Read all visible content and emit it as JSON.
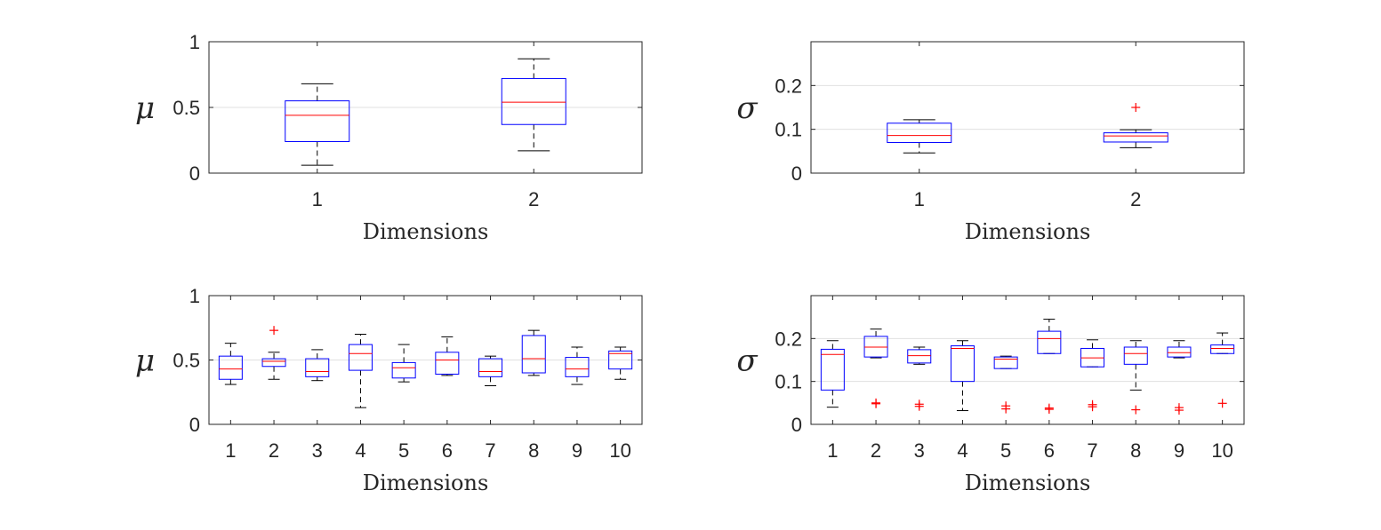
{
  "chart_data": [
    {
      "type": "box",
      "ylabel": "μ",
      "xlabel": "Dimensions",
      "ylim": [
        0,
        1
      ],
      "yticks": [
        0,
        0.5,
        1
      ],
      "ytick_labels": [
        "0",
        "0.5",
        "1"
      ],
      "grid": true,
      "categories": [
        "1",
        "2"
      ],
      "boxes": [
        {
          "whisker_low": 0.06,
          "q1": 0.24,
          "median": 0.44,
          "q3": 0.55,
          "whisker_high": 0.68,
          "outliers": []
        },
        {
          "whisker_low": 0.17,
          "q1": 0.37,
          "median": 0.54,
          "q3": 0.72,
          "whisker_high": 0.87,
          "outliers": []
        }
      ]
    },
    {
      "type": "box",
      "ylabel": "σ",
      "xlabel": "Dimensions",
      "ylim": [
        0,
        0.3
      ],
      "yticks": [
        0,
        0.1,
        0.2
      ],
      "ytick_labels": [
        "0",
        "0.1",
        "0.2"
      ],
      "grid": true,
      "categories": [
        "1",
        "2"
      ],
      "boxes": [
        {
          "whisker_low": 0.046,
          "q1": 0.07,
          "median": 0.086,
          "q3": 0.114,
          "whisker_high": 0.122,
          "outliers": []
        },
        {
          "whisker_low": 0.058,
          "q1": 0.071,
          "median": 0.085,
          "q3": 0.092,
          "whisker_high": 0.099,
          "outliers": [
            0.15
          ]
        }
      ]
    },
    {
      "type": "box",
      "ylabel": "μ",
      "xlabel": "Dimensions",
      "ylim": [
        0,
        1
      ],
      "yticks": [
        0,
        0.5,
        1
      ],
      "ytick_labels": [
        "0",
        "0.5",
        "1"
      ],
      "grid": true,
      "categories": [
        "1",
        "2",
        "3",
        "4",
        "5",
        "6",
        "7",
        "8",
        "9",
        "10"
      ],
      "boxes": [
        {
          "whisker_low": 0.31,
          "q1": 0.35,
          "median": 0.43,
          "q3": 0.53,
          "whisker_high": 0.63,
          "outliers": []
        },
        {
          "whisker_low": 0.35,
          "q1": 0.45,
          "median": 0.49,
          "q3": 0.51,
          "whisker_high": 0.56,
          "outliers": [
            0.73
          ]
        },
        {
          "whisker_low": 0.34,
          "q1": 0.37,
          "median": 0.41,
          "q3": 0.51,
          "whisker_high": 0.58,
          "outliers": []
        },
        {
          "whisker_low": 0.13,
          "q1": 0.42,
          "median": 0.55,
          "q3": 0.62,
          "whisker_high": 0.7,
          "outliers": []
        },
        {
          "whisker_low": 0.33,
          "q1": 0.36,
          "median": 0.44,
          "q3": 0.48,
          "whisker_high": 0.62,
          "outliers": []
        },
        {
          "whisker_low": 0.38,
          "q1": 0.39,
          "median": 0.5,
          "q3": 0.56,
          "whisker_high": 0.68,
          "outliers": []
        },
        {
          "whisker_low": 0.3,
          "q1": 0.37,
          "median": 0.41,
          "q3": 0.51,
          "whisker_high": 0.53,
          "outliers": []
        },
        {
          "whisker_low": 0.38,
          "q1": 0.4,
          "median": 0.51,
          "q3": 0.69,
          "whisker_high": 0.73,
          "outliers": []
        },
        {
          "whisker_low": 0.31,
          "q1": 0.37,
          "median": 0.43,
          "q3": 0.52,
          "whisker_high": 0.6,
          "outliers": []
        },
        {
          "whisker_low": 0.35,
          "q1": 0.43,
          "median": 0.55,
          "q3": 0.57,
          "whisker_high": 0.6,
          "outliers": []
        }
      ]
    },
    {
      "type": "box",
      "ylabel": "σ",
      "xlabel": "Dimensions",
      "ylim": [
        0,
        0.3
      ],
      "yticks": [
        0,
        0.1,
        0.2
      ],
      "ytick_labels": [
        "0",
        "0.1",
        "0.2"
      ],
      "grid": true,
      "categories": [
        "1",
        "2",
        "3",
        "4",
        "5",
        "6",
        "7",
        "8",
        "9",
        "10"
      ],
      "boxes": [
        {
          "whisker_low": 0.04,
          "q1": 0.08,
          "median": 0.163,
          "q3": 0.175,
          "whisker_high": 0.195,
          "outliers": []
        },
        {
          "whisker_low": 0.155,
          "q1": 0.157,
          "median": 0.18,
          "q3": 0.205,
          "whisker_high": 0.222,
          "outliers": [
            0.05,
            0.048
          ]
        },
        {
          "whisker_low": 0.14,
          "q1": 0.143,
          "median": 0.16,
          "q3": 0.174,
          "whisker_high": 0.18,
          "outliers": [
            0.047,
            0.042
          ]
        },
        {
          "whisker_low": 0.032,
          "q1": 0.1,
          "median": 0.177,
          "q3": 0.183,
          "whisker_high": 0.195,
          "outliers": []
        },
        {
          "whisker_low": 0.13,
          "q1": 0.13,
          "median": 0.152,
          "q3": 0.157,
          "whisker_high": 0.159,
          "outliers": [
            0.043,
            0.036
          ]
        },
        {
          "whisker_low": 0.165,
          "q1": 0.165,
          "median": 0.2,
          "q3": 0.217,
          "whisker_high": 0.245,
          "outliers": [
            0.038,
            0.035
          ]
        },
        {
          "whisker_low": 0.134,
          "q1": 0.134,
          "median": 0.155,
          "q3": 0.177,
          "whisker_high": 0.197,
          "outliers": [
            0.046,
            0.041
          ]
        },
        {
          "whisker_low": 0.08,
          "q1": 0.14,
          "median": 0.165,
          "q3": 0.18,
          "whisker_high": 0.195,
          "outliers": [
            0.034
          ]
        },
        {
          "whisker_low": 0.155,
          "q1": 0.157,
          "median": 0.167,
          "q3": 0.18,
          "whisker_high": 0.195,
          "outliers": [
            0.039,
            0.033
          ]
        },
        {
          "whisker_low": 0.165,
          "q1": 0.165,
          "median": 0.177,
          "q3": 0.185,
          "whisker_high": 0.213,
          "outliers": [
            0.049
          ]
        }
      ]
    }
  ],
  "colors": {
    "box": "#0000ff",
    "median": "#ff0000",
    "whisker": "#000000",
    "outlier": "#ff0000",
    "axis": "#262626",
    "grid": "#e0e0e0"
  }
}
